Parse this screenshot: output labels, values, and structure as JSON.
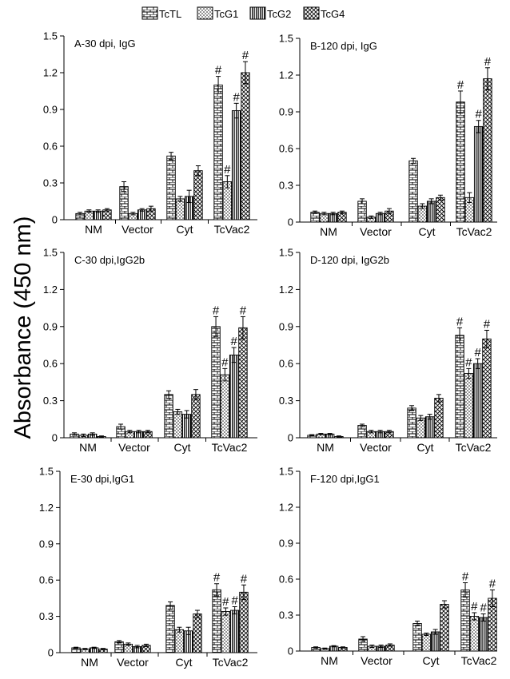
{
  "y_axis_label": "Absorbance (450 nm)",
  "legend": [
    {
      "name": "TcTL",
      "pattern": "brick"
    },
    {
      "name": "TcG1",
      "pattern": "dots"
    },
    {
      "name": "TcG2",
      "pattern": "vlines"
    },
    {
      "name": "TcG4",
      "pattern": "crosshatch"
    }
  ],
  "chart_data": [
    {
      "type": "bar",
      "title": "A-30 dpi, IgG",
      "categories": [
        "NM",
        "Vector",
        "Cyt",
        "TcVac2"
      ],
      "ylim": [
        0,
        1.5
      ],
      "yticks": [
        "0",
        "0.3",
        "0.6",
        "0.9",
        "1.2",
        "1.5"
      ],
      "series": [
        {
          "name": "TcTL",
          "values": [
            0.05,
            0.27,
            0.52,
            1.1
          ],
          "errors": [
            0.01,
            0.04,
            0.03,
            0.07
          ],
          "marks": [
            "",
            "",
            "",
            "#"
          ]
        },
        {
          "name": "TcG1",
          "values": [
            0.07,
            0.05,
            0.17,
            0.31
          ],
          "errors": [
            0.01,
            0.01,
            0.02,
            0.05
          ],
          "marks": [
            "",
            "",
            "",
            "#"
          ]
        },
        {
          "name": "TcG2",
          "values": [
            0.07,
            0.08,
            0.19,
            0.89
          ],
          "errors": [
            0.01,
            0.01,
            0.05,
            0.06
          ],
          "marks": [
            "",
            "",
            "",
            "#"
          ]
        },
        {
          "name": "TcG4",
          "values": [
            0.08,
            0.09,
            0.4,
            1.2
          ],
          "errors": [
            0.01,
            0.02,
            0.04,
            0.09
          ],
          "marks": [
            "",
            "",
            "",
            "#"
          ]
        }
      ]
    },
    {
      "type": "bar",
      "title": "B-120 dpi, IgG",
      "categories": [
        "NM",
        "Vector",
        "Cyt",
        "TcVac2"
      ],
      "ylim": [
        0,
        1.5
      ],
      "yticks": [
        "0",
        "0.3",
        "0.6",
        "0.9",
        "1.2",
        "1.5"
      ],
      "series": [
        {
          "name": "TcTL",
          "values": [
            0.08,
            0.17,
            0.5,
            0.98
          ],
          "errors": [
            0.01,
            0.02,
            0.02,
            0.09
          ],
          "marks": [
            "",
            "",
            "",
            "#"
          ]
        },
        {
          "name": "TcG1",
          "values": [
            0.07,
            0.04,
            0.13,
            0.2
          ],
          "errors": [
            0.01,
            0.01,
            0.02,
            0.04
          ],
          "marks": [
            "",
            "",
            "",
            ""
          ]
        },
        {
          "name": "TcG2",
          "values": [
            0.07,
            0.07,
            0.17,
            0.78
          ],
          "errors": [
            0.01,
            0.01,
            0.02,
            0.05
          ],
          "marks": [
            "",
            "",
            "",
            "#"
          ]
        },
        {
          "name": "TcG4",
          "values": [
            0.08,
            0.09,
            0.2,
            1.17
          ],
          "errors": [
            0.01,
            0.02,
            0.02,
            0.09
          ],
          "marks": [
            "",
            "",
            "",
            "#"
          ]
        }
      ]
    },
    {
      "type": "bar",
      "title": "C-30 dpi,IgG2b",
      "categories": [
        "NM",
        "Vector",
        "Cyt",
        "TcVac2"
      ],
      "ylim": [
        0,
        1.5
      ],
      "yticks": [
        "0",
        "0.3",
        "0.6",
        "0.9",
        "1.2",
        "1.5"
      ],
      "series": [
        {
          "name": "TcTL",
          "values": [
            0.03,
            0.09,
            0.35,
            0.9
          ],
          "errors": [
            0.01,
            0.02,
            0.03,
            0.08
          ],
          "marks": [
            "",
            "",
            "",
            "#"
          ]
        },
        {
          "name": "TcG1",
          "values": [
            0.02,
            0.05,
            0.21,
            0.51
          ],
          "errors": [
            0.01,
            0.01,
            0.02,
            0.05
          ],
          "marks": [
            "",
            "",
            "",
            "#"
          ]
        },
        {
          "name": "TcG2",
          "values": [
            0.03,
            0.05,
            0.19,
            0.67
          ],
          "errors": [
            0.01,
            0.01,
            0.03,
            0.06
          ],
          "marks": [
            "",
            "",
            "",
            "#"
          ]
        },
        {
          "name": "TcG4",
          "values": [
            0.01,
            0.05,
            0.35,
            0.89
          ],
          "errors": [
            0.005,
            0.01,
            0.04,
            0.09
          ],
          "marks": [
            "",
            "",
            "",
            "#"
          ]
        }
      ]
    },
    {
      "type": "bar",
      "title": "D-120 dpi, IgG2b",
      "categories": [
        "NM",
        "Vector",
        "Cyt",
        "TcVac2"
      ],
      "ylim": [
        0,
        1.5
      ],
      "yticks": [
        "0",
        "0.3",
        "0.6",
        "0.9",
        "1.2",
        "1.5"
      ],
      "series": [
        {
          "name": "TcTL",
          "values": [
            0.02,
            0.1,
            0.24,
            0.83
          ],
          "errors": [
            0.005,
            0.01,
            0.02,
            0.06
          ],
          "marks": [
            "",
            "",
            "",
            "#"
          ]
        },
        {
          "name": "TcG1",
          "values": [
            0.03,
            0.05,
            0.16,
            0.52
          ],
          "errors": [
            0.005,
            0.01,
            0.02,
            0.04
          ],
          "marks": [
            "",
            "",
            "",
            "#"
          ]
        },
        {
          "name": "TcG2",
          "values": [
            0.03,
            0.05,
            0.17,
            0.6
          ],
          "errors": [
            0.005,
            0.01,
            0.02,
            0.04
          ],
          "marks": [
            "",
            "",
            "",
            "#"
          ]
        },
        {
          "name": "TcG4",
          "values": [
            0.01,
            0.05,
            0.32,
            0.8
          ],
          "errors": [
            0.005,
            0.01,
            0.03,
            0.07
          ],
          "marks": [
            "",
            "",
            "",
            "#"
          ]
        }
      ]
    },
    {
      "type": "bar",
      "title": "E-30 dpi,IgG1",
      "categories": [
        "NM",
        "Vector",
        "Cyt",
        "TcVac2"
      ],
      "ylim": [
        0,
        1.5
      ],
      "yticks": [
        "0",
        "0.3",
        "0.6",
        "0.9",
        "1.2",
        "1.5"
      ],
      "series": [
        {
          "name": "TcTL",
          "values": [
            0.04,
            0.09,
            0.39,
            0.52
          ],
          "errors": [
            0.005,
            0.01,
            0.03,
            0.05
          ],
          "marks": [
            "",
            "",
            "",
            "#"
          ]
        },
        {
          "name": "TcG1",
          "values": [
            0.03,
            0.07,
            0.19,
            0.34
          ],
          "errors": [
            0.005,
            0.01,
            0.02,
            0.03
          ],
          "marks": [
            "",
            "",
            "",
            "#"
          ]
        },
        {
          "name": "TcG2",
          "values": [
            0.04,
            0.05,
            0.18,
            0.35
          ],
          "errors": [
            0.005,
            0.01,
            0.03,
            0.03
          ],
          "marks": [
            "",
            "",
            "",
            "#"
          ]
        },
        {
          "name": "TcG4",
          "values": [
            0.03,
            0.06,
            0.32,
            0.5
          ],
          "errors": [
            0.005,
            0.01,
            0.03,
            0.06
          ],
          "marks": [
            "",
            "",
            "",
            "#"
          ]
        }
      ]
    },
    {
      "type": "bar",
      "title": "F-120 dpi,IgG1",
      "categories": [
        "NM",
        "Vector",
        "Cyt",
        "TcVac2"
      ],
      "ylim": [
        0,
        1.5
      ],
      "yticks": [
        "0",
        "0.3",
        "0.6",
        "0.9",
        "1.2",
        "1.5"
      ],
      "series": [
        {
          "name": "TcTL",
          "values": [
            0.03,
            0.1,
            0.23,
            0.51
          ],
          "errors": [
            0.005,
            0.02,
            0.02,
            0.06
          ],
          "marks": [
            "",
            "",
            "",
            "#"
          ]
        },
        {
          "name": "TcG1",
          "values": [
            0.02,
            0.04,
            0.14,
            0.29
          ],
          "errors": [
            0.005,
            0.01,
            0.01,
            0.03
          ],
          "marks": [
            "",
            "",
            "",
            "#"
          ]
        },
        {
          "name": "TcG2",
          "values": [
            0.04,
            0.04,
            0.16,
            0.28
          ],
          "errors": [
            0.005,
            0.01,
            0.02,
            0.03
          ],
          "marks": [
            "",
            "",
            "",
            "#"
          ]
        },
        {
          "name": "TcG4",
          "values": [
            0.03,
            0.05,
            0.39,
            0.44
          ],
          "errors": [
            0.005,
            0.01,
            0.03,
            0.07
          ],
          "marks": [
            "",
            "",
            "",
            "#"
          ]
        }
      ]
    }
  ]
}
